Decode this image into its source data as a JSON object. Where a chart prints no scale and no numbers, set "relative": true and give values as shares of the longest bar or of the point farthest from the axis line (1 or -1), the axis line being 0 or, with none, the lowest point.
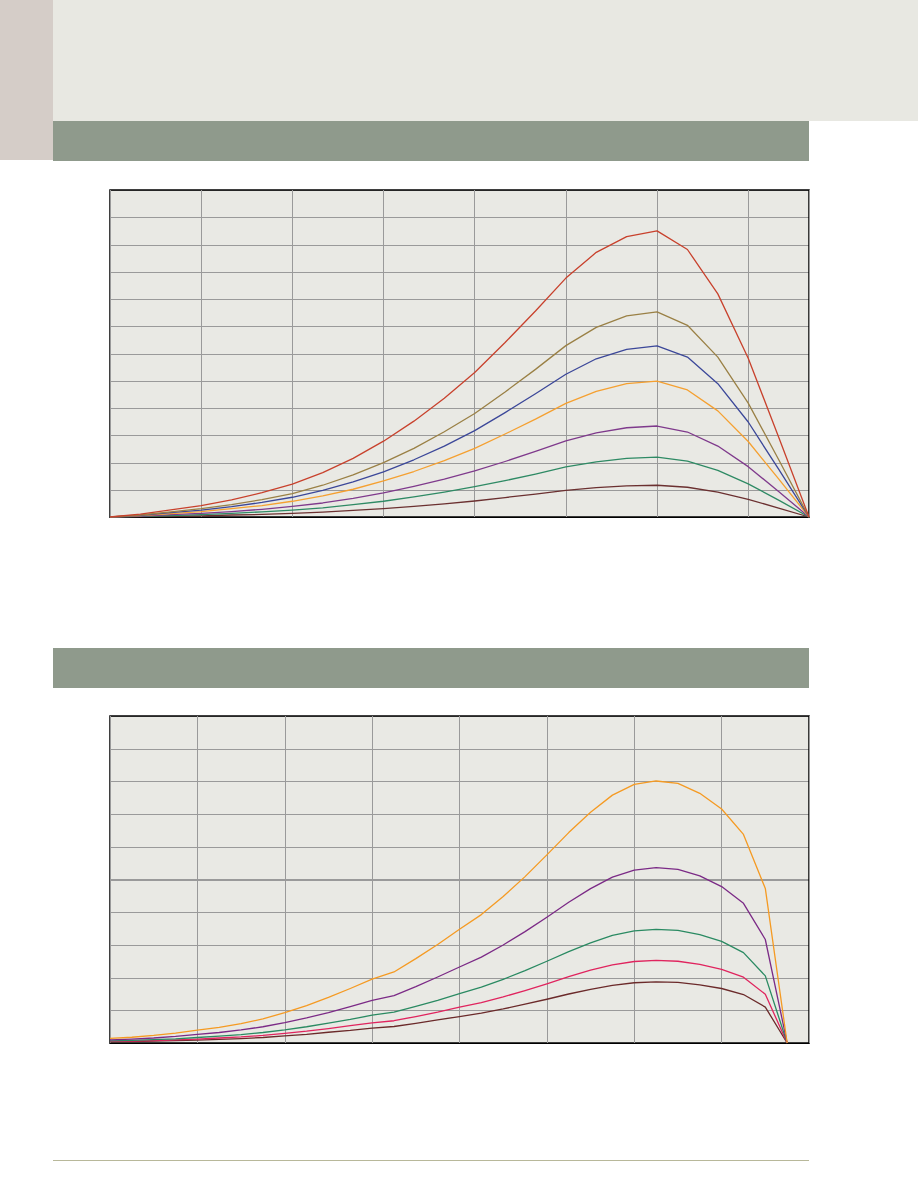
{
  "chart_data": [
    {
      "type": "line",
      "relative": true,
      "grid": true,
      "marker": "none",
      "categories": [
        null,
        null,
        null,
        null,
        null,
        null,
        null,
        null,
        null,
        null,
        null,
        null,
        null,
        null,
        null,
        null,
        null,
        null,
        null,
        null,
        null,
        null,
        null,
        null
      ],
      "series": [
        {
          "color": "#c8412c",
          "values": [
            0,
            0.01,
            0.025,
            0.04,
            0.06,
            0.085,
            0.115,
            0.155,
            0.205,
            0.265,
            0.335,
            0.415,
            0.505,
            0.61,
            0.72,
            0.835,
            0.925,
            0.98,
            1,
            0.935,
            0.78,
            0.555,
            0.28,
            0
          ]
        },
        {
          "color": "#9a8045",
          "values": [
            0,
            0.007,
            0.018,
            0.029,
            0.043,
            0.061,
            0.082,
            0.111,
            0.147,
            0.19,
            0.24,
            0.298,
            0.362,
            0.437,
            0.516,
            0.599,
            0.663,
            0.703,
            0.717,
            0.67,
            0.559,
            0.398,
            0.201,
            0
          ]
        },
        {
          "color": "#3b4799",
          "values": [
            0,
            0.006,
            0.015,
            0.024,
            0.036,
            0.051,
            0.069,
            0.093,
            0.123,
            0.158,
            0.2,
            0.248,
            0.302,
            0.365,
            0.431,
            0.499,
            0.553,
            0.586,
            0.598,
            0.559,
            0.466,
            0.332,
            0.167,
            0
          ]
        },
        {
          "color": "#f5a030",
          "values": [
            0,
            0.005,
            0.012,
            0.019,
            0.029,
            0.04,
            0.055,
            0.074,
            0.097,
            0.126,
            0.159,
            0.197,
            0.24,
            0.29,
            0.342,
            0.397,
            0.439,
            0.466,
            0.475,
            0.444,
            0.371,
            0.264,
            0.133,
            0
          ]
        },
        {
          "color": "#7f3a8c",
          "values": [
            0,
            0.003,
            0.008,
            0.013,
            0.019,
            0.027,
            0.037,
            0.049,
            0.065,
            0.084,
            0.107,
            0.132,
            0.161,
            0.194,
            0.229,
            0.266,
            0.294,
            0.312,
            0.318,
            0.297,
            0.248,
            0.176,
            0.089,
            0
          ]
        },
        {
          "color": "#2e8a64",
          "values": [
            0,
            0.002,
            0.005,
            0.008,
            0.013,
            0.018,
            0.024,
            0.032,
            0.043,
            0.055,
            0.07,
            0.087,
            0.106,
            0.127,
            0.15,
            0.175,
            0.193,
            0.205,
            0.209,
            0.195,
            0.163,
            0.116,
            0.059,
            0
          ]
        },
        {
          "color": "#6b3030",
          "values": [
            0,
            0.001,
            0.003,
            0.004,
            0.007,
            0.009,
            0.013,
            0.017,
            0.023,
            0.029,
            0.037,
            0.046,
            0.056,
            0.068,
            0.08,
            0.093,
            0.103,
            0.109,
            0.111,
            0.104,
            0.087,
            0.062,
            0.031,
            0
          ]
        }
      ]
    },
    {
      "type": "line",
      "relative": true,
      "grid": true,
      "marker": "none",
      "categories": [
        null,
        null,
        null,
        null,
        null,
        null,
        null,
        null,
        null,
        null,
        null,
        null,
        null,
        null,
        null,
        null,
        null,
        null,
        null,
        null,
        null,
        null,
        null,
        null,
        null,
        null,
        null,
        null,
        null,
        null,
        null,
        null,
        null
      ],
      "series": [
        {
          "color": "#f59a22",
          "values": [
            0.018,
            0.022,
            0.029,
            0.038,
            0.049,
            0.06,
            0.074,
            0.092,
            0.116,
            0.143,
            0.174,
            0.208,
            0.244,
            0.271,
            0.322,
            0.376,
            0.434,
            0.49,
            0.559,
            0.635,
            0.718,
            0.803,
            0.881,
            0.946,
            0.987,
            1,
            0.991,
            0.953,
            0.893,
            0.796,
            0.59,
            0,
            null
          ]
        },
        {
          "color": "#7b2a86",
          "values": [
            0.012,
            0.015,
            0.019,
            0.025,
            0.033,
            0.04,
            0.05,
            0.062,
            0.078,
            0.096,
            0.116,
            0.139,
            0.163,
            0.181,
            0.215,
            0.252,
            0.29,
            0.328,
            0.374,
            0.425,
            0.48,
            0.537,
            0.589,
            0.633,
            0.66,
            0.669,
            0.663,
            0.638,
            0.597,
            0.533,
            0.395,
            0,
            null
          ]
        },
        {
          "color": "#2a8a62",
          "values": [
            0.008,
            0.01,
            0.013,
            0.016,
            0.021,
            0.026,
            0.032,
            0.04,
            0.05,
            0.062,
            0.076,
            0.09,
            0.106,
            0.118,
            0.14,
            0.163,
            0.188,
            0.213,
            0.243,
            0.276,
            0.312,
            0.349,
            0.382,
            0.411,
            0.428,
            0.434,
            0.43,
            0.414,
            0.388,
            0.345,
            0.256,
            0,
            null
          ]
        },
        {
          "color": "#e0245e",
          "values": [
            0.006,
            0.007,
            0.009,
            0.012,
            0.015,
            0.019,
            0.023,
            0.029,
            0.037,
            0.045,
            0.055,
            0.066,
            0.077,
            0.085,
            0.101,
            0.118,
            0.137,
            0.154,
            0.176,
            0.2,
            0.226,
            0.253,
            0.278,
            0.298,
            0.311,
            0.315,
            0.312,
            0.3,
            0.281,
            0.251,
            0.186,
            0,
            null
          ]
        },
        {
          "color": "#6b2a2a",
          "values": [
            0.004,
            0.005,
            0.007,
            0.009,
            0.011,
            0.014,
            0.017,
            0.021,
            0.027,
            0.033,
            0.041,
            0.048,
            0.057,
            0.063,
            0.075,
            0.088,
            0.101,
            0.114,
            0.13,
            0.148,
            0.167,
            0.187,
            0.205,
            0.22,
            0.23,
            0.233,
            0.231,
            0.222,
            0.208,
            0.185,
            0.137,
            0,
            null
          ]
        }
      ]
    }
  ]
}
